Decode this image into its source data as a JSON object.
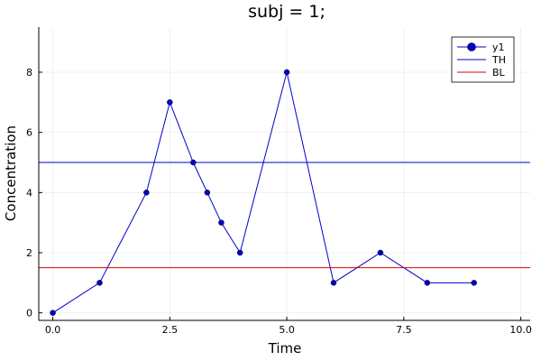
{
  "chart_data": {
    "type": "line",
    "title": "subj = 1;",
    "xlabel": "Time",
    "ylabel": "Concentration",
    "xlim": [
      -0.3,
      10.2
    ],
    "ylim": [
      -0.25,
      9.5
    ],
    "xticks": [
      0,
      2.5,
      5,
      7.5,
      10
    ],
    "xtick_labels": [
      "0.0",
      "2.5",
      "5.0",
      "7.5",
      "10.0"
    ],
    "yticks": [
      0,
      2,
      4,
      6,
      8
    ],
    "ytick_labels": [
      "0",
      "2",
      "4",
      "6",
      "8"
    ],
    "grid": true,
    "legend_position": "top-right",
    "series": [
      {
        "name": "y1",
        "kind": "line-markers",
        "color": "#0000cc",
        "x": [
          0,
          1,
          2,
          2.5,
          3,
          3.3,
          3.6,
          4,
          5,
          6,
          7,
          8,
          9
        ],
        "y": [
          0,
          1,
          4,
          7,
          5,
          4,
          3,
          2,
          8,
          1,
          2,
          1,
          1
        ]
      },
      {
        "name": "TH",
        "kind": "hline",
        "color": "#0000cc",
        "y": 5
      },
      {
        "name": "BL",
        "kind": "hline",
        "color": "#dd0000",
        "y": 1.5
      }
    ]
  }
}
